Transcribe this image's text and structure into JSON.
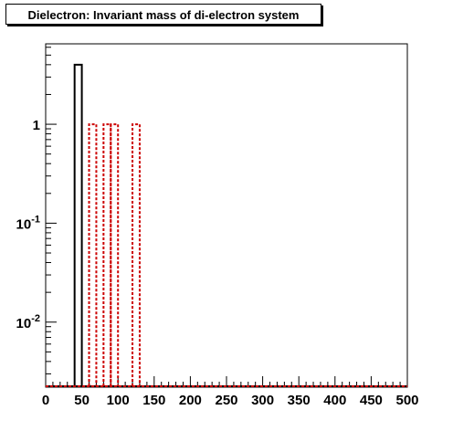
{
  "chart_data": {
    "type": "bar",
    "title": "Dielectron: Invariant mass of di-electron system",
    "xlabel": "",
    "ylabel": "",
    "xlim": [
      0,
      500
    ],
    "ylim": [
      0.0022,
      6.5
    ],
    "yscale": "log",
    "grid": false,
    "x_tick_labels": [
      "0",
      "50",
      "100",
      "150",
      "200",
      "250",
      "300",
      "350",
      "400",
      "450",
      "500"
    ],
    "y_tick_labels": [
      {
        "value": 0.01,
        "base": "10",
        "exp": "-2"
      },
      {
        "value": 0.1,
        "base": "10",
        "exp": "-1"
      },
      {
        "value": 1,
        "base": "1",
        "exp": ""
      }
    ],
    "bin_width": 10,
    "series": [
      {
        "color": "#000000",
        "style": "solid",
        "bins": [
          {
            "x_low": 40,
            "value": 4
          }
        ]
      },
      {
        "color": "#cc0000",
        "style": "dotted",
        "bins": [
          {
            "x_low": 60,
            "value": 1
          },
          {
            "x_low": 80,
            "value": 1
          },
          {
            "x_low": 90,
            "value": 1
          },
          {
            "x_low": 120,
            "value": 1
          }
        ]
      }
    ]
  }
}
